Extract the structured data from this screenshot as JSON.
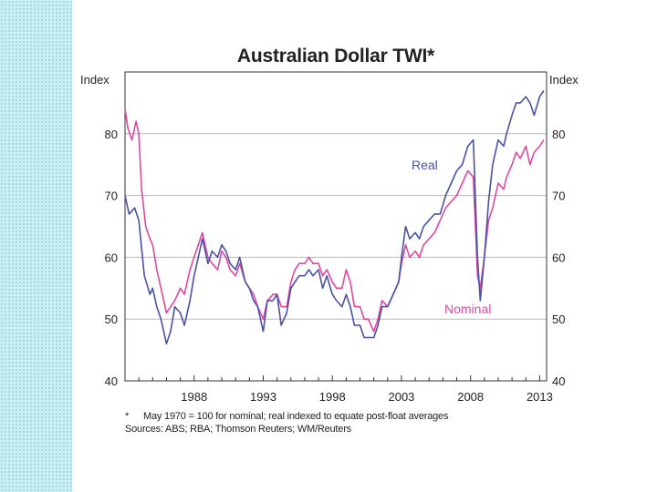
{
  "chart_data": {
    "type": "line",
    "title": "Australian Dollar TWI*",
    "ylabel_left": "Index",
    "ylabel_right": "Index",
    "ylim": [
      40,
      90
    ],
    "yticks": [
      40,
      50,
      60,
      70,
      80
    ],
    "xlim": [
      1983.0,
      2013.5
    ],
    "xticks": [
      1988,
      1993,
      1998,
      2003,
      2008,
      2013
    ],
    "grid": true,
    "colors": {
      "Real": "#4a52a5",
      "Nominal": "#e2469e"
    },
    "annotations": [
      {
        "series": "Real",
        "text": "Real"
      },
      {
        "series": "Nominal",
        "text": "Nominal"
      }
    ],
    "series": [
      {
        "name": "Real",
        "x": [
          1983.0,
          1983.3,
          1983.7,
          1984.0,
          1984.4,
          1984.8,
          1985.0,
          1985.3,
          1985.6,
          1986.0,
          1986.3,
          1986.6,
          1987.0,
          1987.3,
          1987.7,
          1988.0,
          1988.3,
          1988.6,
          1989.0,
          1989.3,
          1989.7,
          1990.0,
          1990.3,
          1990.6,
          1991.0,
          1991.3,
          1991.7,
          1992.0,
          1992.3,
          1992.6,
          1993.0,
          1993.3,
          1993.7,
          1994.0,
          1994.3,
          1994.7,
          1995.0,
          1995.3,
          1995.6,
          1996.0,
          1996.3,
          1996.6,
          1997.0,
          1997.3,
          1997.6,
          1998.0,
          1998.3,
          1998.7,
          1999.0,
          1999.3,
          1999.6,
          2000.0,
          2000.3,
          2000.6,
          2001.0,
          2001.3,
          2001.6,
          2002.0,
          2002.4,
          2002.8,
          2003.0,
          2003.3,
          2003.6,
          2004.0,
          2004.3,
          2004.6,
          2005.0,
          2005.4,
          2005.8,
          2006.2,
          2006.6,
          2007.0,
          2007.4,
          2007.8,
          2008.2,
          2008.5,
          2008.7,
          2009.0,
          2009.3,
          2009.6,
          2010.0,
          2010.4,
          2010.6,
          2011.0,
          2011.3,
          2011.6,
          2012.0,
          2012.3,
          2012.6,
          2013.0,
          2013.3
        ],
        "values": [
          70,
          67,
          68,
          66,
          57,
          54,
          55,
          52,
          50,
          46,
          48,
          52,
          51,
          49,
          53,
          57,
          60,
          63,
          59,
          61,
          60,
          62,
          61,
          59,
          58,
          60,
          56,
          55,
          53,
          52,
          48,
          53,
          53,
          54,
          49,
          51,
          55,
          56,
          57,
          57,
          58,
          57,
          58,
          55,
          57,
          54,
          53,
          52,
          54,
          52,
          49,
          49,
          47,
          47,
          47,
          49,
          52,
          52,
          54,
          56,
          60,
          65,
          63,
          64,
          63,
          65,
          66,
          67,
          67,
          70,
          72,
          74,
          75,
          78,
          79,
          60,
          53,
          60,
          69,
          75,
          79,
          78,
          80,
          83,
          85,
          85,
          86,
          85,
          83,
          86,
          87
        ]
      },
      {
        "name": "Nominal",
        "x": [
          1983.0,
          1983.2,
          1983.5,
          1983.8,
          1984.0,
          1984.2,
          1984.5,
          1984.8,
          1985.0,
          1985.3,
          1985.6,
          1986.0,
          1986.3,
          1986.6,
          1987.0,
          1987.3,
          1987.7,
          1988.0,
          1988.3,
          1988.6,
          1989.0,
          1989.3,
          1989.7,
          1990.0,
          1990.3,
          1990.6,
          1991.0,
          1991.3,
          1991.7,
          1992.0,
          1992.3,
          1992.6,
          1993.0,
          1993.3,
          1993.7,
          1994.0,
          1994.3,
          1994.7,
          1995.0,
          1995.3,
          1995.6,
          1996.0,
          1996.3,
          1996.6,
          1997.0,
          1997.3,
          1997.6,
          1998.0,
          1998.3,
          1998.7,
          1999.0,
          1999.3,
          1999.6,
          2000.0,
          2000.3,
          2000.6,
          2001.0,
          2001.3,
          2001.6,
          2002.0,
          2002.4,
          2002.8,
          2003.0,
          2003.3,
          2003.6,
          2004.0,
          2004.3,
          2004.6,
          2005.0,
          2005.4,
          2005.8,
          2006.2,
          2006.6,
          2007.0,
          2007.4,
          2007.8,
          2008.2,
          2008.5,
          2008.7,
          2009.0,
          2009.3,
          2009.6,
          2010.0,
          2010.4,
          2010.6,
          2011.0,
          2011.3,
          2011.6,
          2012.0,
          2012.3,
          2012.6,
          2013.0,
          2013.3
        ],
        "values": [
          84,
          81,
          79,
          82,
          80,
          71,
          65,
          63,
          62,
          58,
          55,
          51,
          52,
          53,
          55,
          54,
          58,
          60,
          62,
          64,
          60,
          59,
          58,
          61,
          60,
          58,
          57,
          59,
          56,
          55,
          54,
          52,
          50,
          53,
          54,
          54,
          52,
          52,
          56,
          58,
          59,
          59,
          60,
          59,
          59,
          57,
          58,
          56,
          55,
          55,
          58,
          56,
          52,
          52,
          50,
          50,
          48,
          50,
          53,
          52,
          54,
          56,
          59,
          62,
          60,
          61,
          60,
          62,
          63,
          64,
          66,
          68,
          69,
          70,
          72,
          74,
          73,
          57,
          55,
          60,
          66,
          68,
          72,
          71,
          73,
          75,
          77,
          76,
          78,
          75,
          77,
          78,
          79
        ]
      }
    ]
  },
  "notes": {
    "star": "*",
    "footnote": "May 1970 = 100 for nominal; real indexed to equate post-float averages",
    "sources": "Sources: ABS; RBA; Thomson Reuters; WM/Reuters"
  }
}
